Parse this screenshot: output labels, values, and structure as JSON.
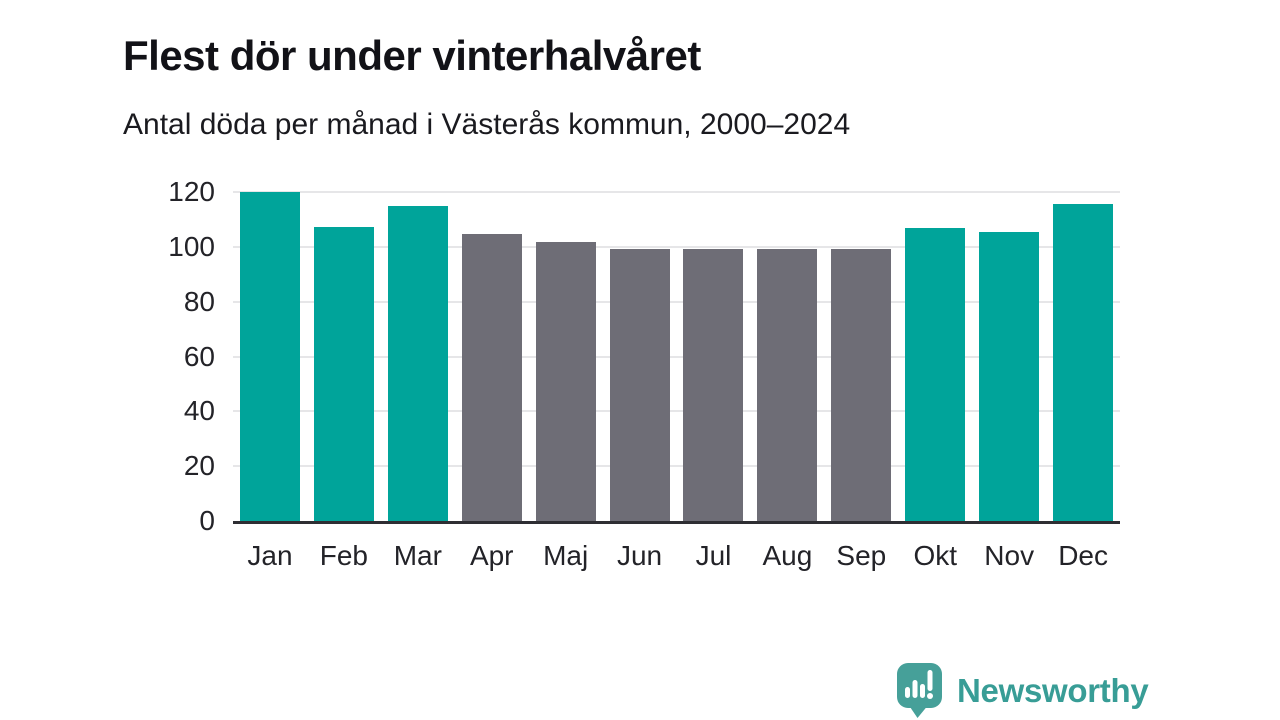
{
  "header": {
    "title": "Flest dör under vinterhalvåret",
    "subtitle": "Antal döda per månad i Västerås kommun, 2000–2024"
  },
  "chart_data": {
    "type": "bar",
    "title": "Flest dör under vinterhalvåret",
    "subtitle": "Antal döda per månad i Västerås kommun, 2000–2024",
    "categories": [
      "Jan",
      "Feb",
      "Mar",
      "Apr",
      "Maj",
      "Jun",
      "Jul",
      "Aug",
      "Sep",
      "Okt",
      "Nov",
      "Dec"
    ],
    "values": [
      120,
      107.4,
      114.9,
      104.7,
      101.6,
      99.1,
      99.3,
      99.3,
      99.1,
      106.9,
      105.5,
      115.5
    ],
    "highlighted": [
      true,
      true,
      true,
      false,
      false,
      false,
      false,
      false,
      false,
      true,
      true,
      true
    ],
    "xlabel": "",
    "ylabel": "",
    "ylim": [
      0,
      120
    ],
    "yticks": [
      0,
      20,
      40,
      60,
      80,
      100,
      120
    ],
    "grid": true,
    "legend": "none",
    "colors": {
      "highlight": "#00a49a",
      "muted": "#6e6d76",
      "gridline": "#e6e6e8",
      "axis_line": "#2e2e33",
      "tick_label": "#232328"
    }
  },
  "footer": {
    "brand": "Newsworthy",
    "logo_icon": "newsworthy-speech-bubble-bar-chart-icon",
    "brand_color": "#389d96",
    "logo_fill": "#46a099"
  }
}
